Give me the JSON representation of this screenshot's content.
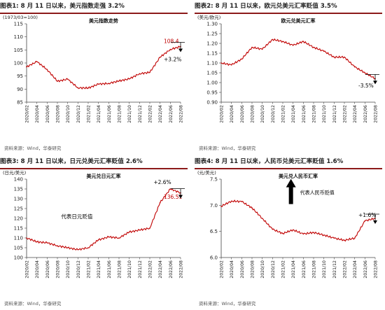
{
  "panels": [
    {
      "title": "图表1:  8 月 11 日以来，美元指数走强 3.2%",
      "source": "资料来源：Wind，华泰研究"
    },
    {
      "title": "图表2:  8 月 11 日以来，欧元兑美元汇率贬值 3.5%",
      "source": "资料来源：Wind，华泰研究"
    },
    {
      "title": "图表3:  8 月 11 日以来，日元兑美元汇率贬值 2.6%",
      "source": "资料来源：Wind，华泰研究"
    },
    {
      "title": "图表4:  8 月 11 日以来，人民币兑美元汇率贬值 1.6%",
      "source": "资料来源：Wind，华泰研究"
    }
  ],
  "chart_data": [
    {
      "type": "line",
      "title": "美元指数走势",
      "ylabel": "(1973/03=100)",
      "ylim": [
        85,
        115
      ],
      "yticks": [
        85,
        90,
        95,
        100,
        105,
        110,
        115
      ],
      "x": [
        "2020/02",
        "2020/04",
        "2020/06",
        "2020/08",
        "2020/10",
        "2020/12",
        "2021/02",
        "2021/04",
        "2021/06",
        "2021/08",
        "2021/10",
        "2021/12",
        "2022/02",
        "2022/04",
        "2022/06",
        "2022/08"
      ],
      "values": [
        98.5,
        100.5,
        97.5,
        93.0,
        93.8,
        90.5,
        90.4,
        91.9,
        92.2,
        93.1,
        93.9,
        95.9,
        96.4,
        102.2,
        105.2,
        106.3
      ],
      "annotations": [
        {
          "text": "108.4",
          "x": "2022/08",
          "y": 108.4,
          "color": "#c00000"
        },
        {
          "text": "+3.2%",
          "x": "2022/08",
          "y": 101.5,
          "color": "#000000"
        }
      ],
      "line_color": "#c00000"
    },
    {
      "type": "line",
      "title": "欧元兑美元汇率",
      "ylabel": "(美元/欧元)",
      "ylim": [
        0.9,
        1.3
      ],
      "yticks": [
        0.9,
        0.95,
        1.0,
        1.05,
        1.1,
        1.15,
        1.2,
        1.25,
        1.3
      ],
      "x": [
        "2020/02",
        "2020/04",
        "2020/06",
        "2020/08",
        "2020/10",
        "2020/12",
        "2021/02",
        "2021/04",
        "2021/06",
        "2021/08",
        "2021/10",
        "2021/12",
        "2022/02",
        "2022/04",
        "2022/06",
        "2022/08"
      ],
      "values": [
        1.1,
        1.09,
        1.12,
        1.18,
        1.17,
        1.22,
        1.21,
        1.19,
        1.21,
        1.18,
        1.16,
        1.13,
        1.13,
        1.08,
        1.05,
        1.02
      ],
      "annotations": [
        {
          "text": "-3.5%",
          "x": "2022/08",
          "y": 0.985,
          "color": "#000000"
        }
      ],
      "line_color": "#c00000"
    },
    {
      "type": "line",
      "title": "美元兑日元汇率",
      "ylabel": "(日元/美元)",
      "ylim": [
        100,
        140
      ],
      "yticks": [
        100,
        105,
        110,
        115,
        120,
        125,
        130,
        135,
        140
      ],
      "x": [
        "2020/02",
        "2020/04",
        "2020/06",
        "2020/08",
        "2020/10",
        "2020/12",
        "2021/02",
        "2021/04",
        "2021/06",
        "2021/08",
        "2021/10",
        "2021/12",
        "2022/02",
        "2022/04",
        "2022/06",
        "2022/08"
      ],
      "values": [
        110,
        108,
        107.5,
        106,
        105,
        104,
        105,
        109,
        110.5,
        110,
        113,
        114,
        115,
        128,
        135,
        133
      ],
      "annotations": [
        {
          "text": "+2.6%",
          "x": "2022/06",
          "y": 138.5,
          "color": "#000000"
        },
        {
          "text": "136.51",
          "x": "2022/08",
          "y": 131,
          "color": "#c00000"
        },
        {
          "text": "代表日元贬值",
          "x": "2020/12",
          "y": 121,
          "color": "#000000"
        }
      ],
      "line_color": "#c00000"
    },
    {
      "type": "line",
      "title": "美元兑人民币汇率",
      "ylabel": "(元/美元)",
      "ylim": [
        6.0,
        7.5
      ],
      "yticks": [
        6.0,
        6.5,
        7.0,
        7.5
      ],
      "x": [
        "2020/02",
        "2020/04",
        "2020/06",
        "2020/08",
        "2020/10",
        "2020/12",
        "2021/02",
        "2021/04",
        "2021/06",
        "2021/08",
        "2021/10",
        "2021/12",
        "2022/02",
        "2022/04",
        "2022/06",
        "2022/08"
      ],
      "values": [
        6.98,
        7.08,
        7.07,
        6.95,
        6.75,
        6.54,
        6.46,
        6.53,
        6.45,
        6.48,
        6.43,
        6.37,
        6.33,
        6.37,
        6.7,
        6.75
      ],
      "annotations": [
        {
          "text": "+1.6%",
          "x": "2022/08",
          "y": 6.82,
          "color": "#000000"
        },
        {
          "text": "代表人民币贬值",
          "x": "2021/04",
          "y": 7.05,
          "color": "#000000"
        }
      ],
      "line_color": "#c00000"
    }
  ]
}
